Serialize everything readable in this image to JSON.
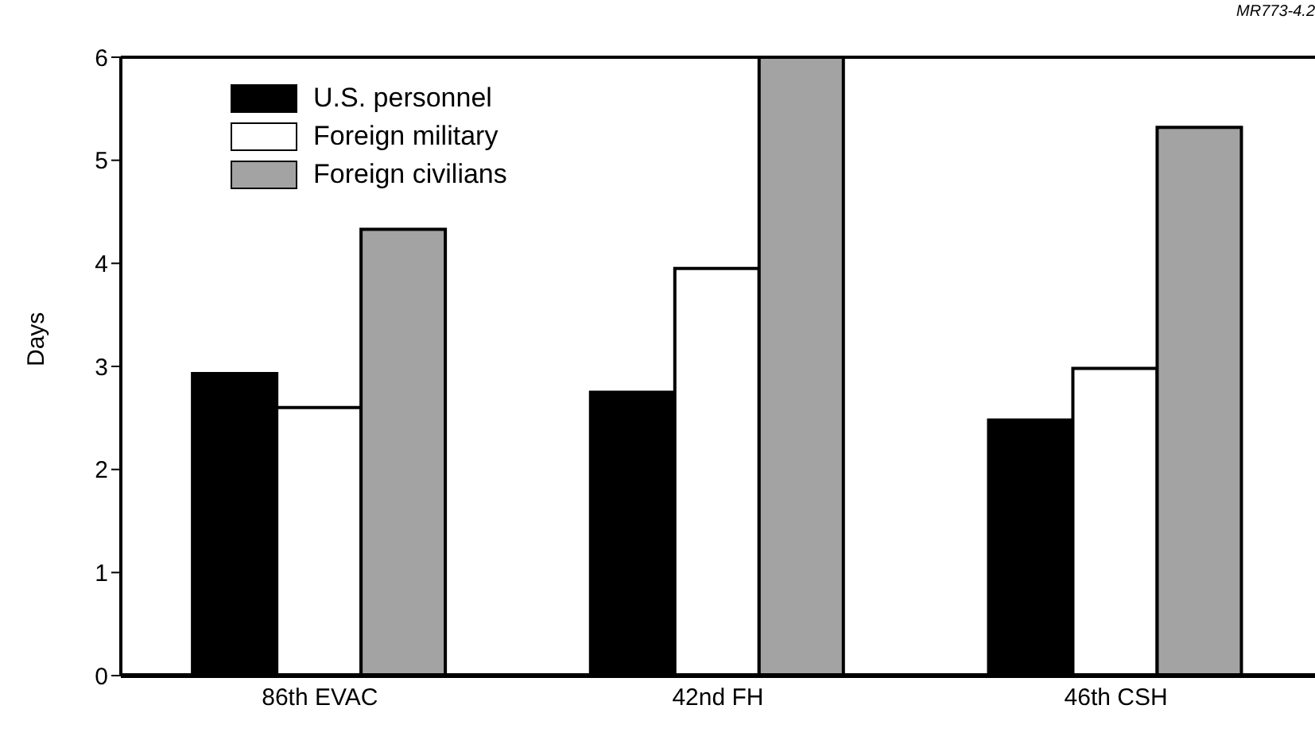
{
  "chart_data": {
    "type": "bar",
    "ylabel": "Days",
    "categories": [
      "86th EVAC",
      "42nd FH",
      "46th CSH"
    ],
    "series": [
      {
        "name": "U.S. personnel",
        "color": "#000000",
        "values": [
          2.93,
          2.75,
          2.48
        ]
      },
      {
        "name": "Foreign military",
        "color": "#ffffff",
        "values": [
          2.6,
          3.95,
          2.98
        ]
      },
      {
        "name": "Foreign civilians",
        "color": "#a3a3a3",
        "values": [
          4.33,
          6.0,
          5.32
        ]
      }
    ],
    "ylim": [
      0,
      6
    ],
    "yticks": [
      0,
      1,
      2,
      3,
      4,
      5,
      6
    ],
    "grid": false,
    "legend": "top left",
    "annotations": [
      "MR773-4.2"
    ]
  }
}
